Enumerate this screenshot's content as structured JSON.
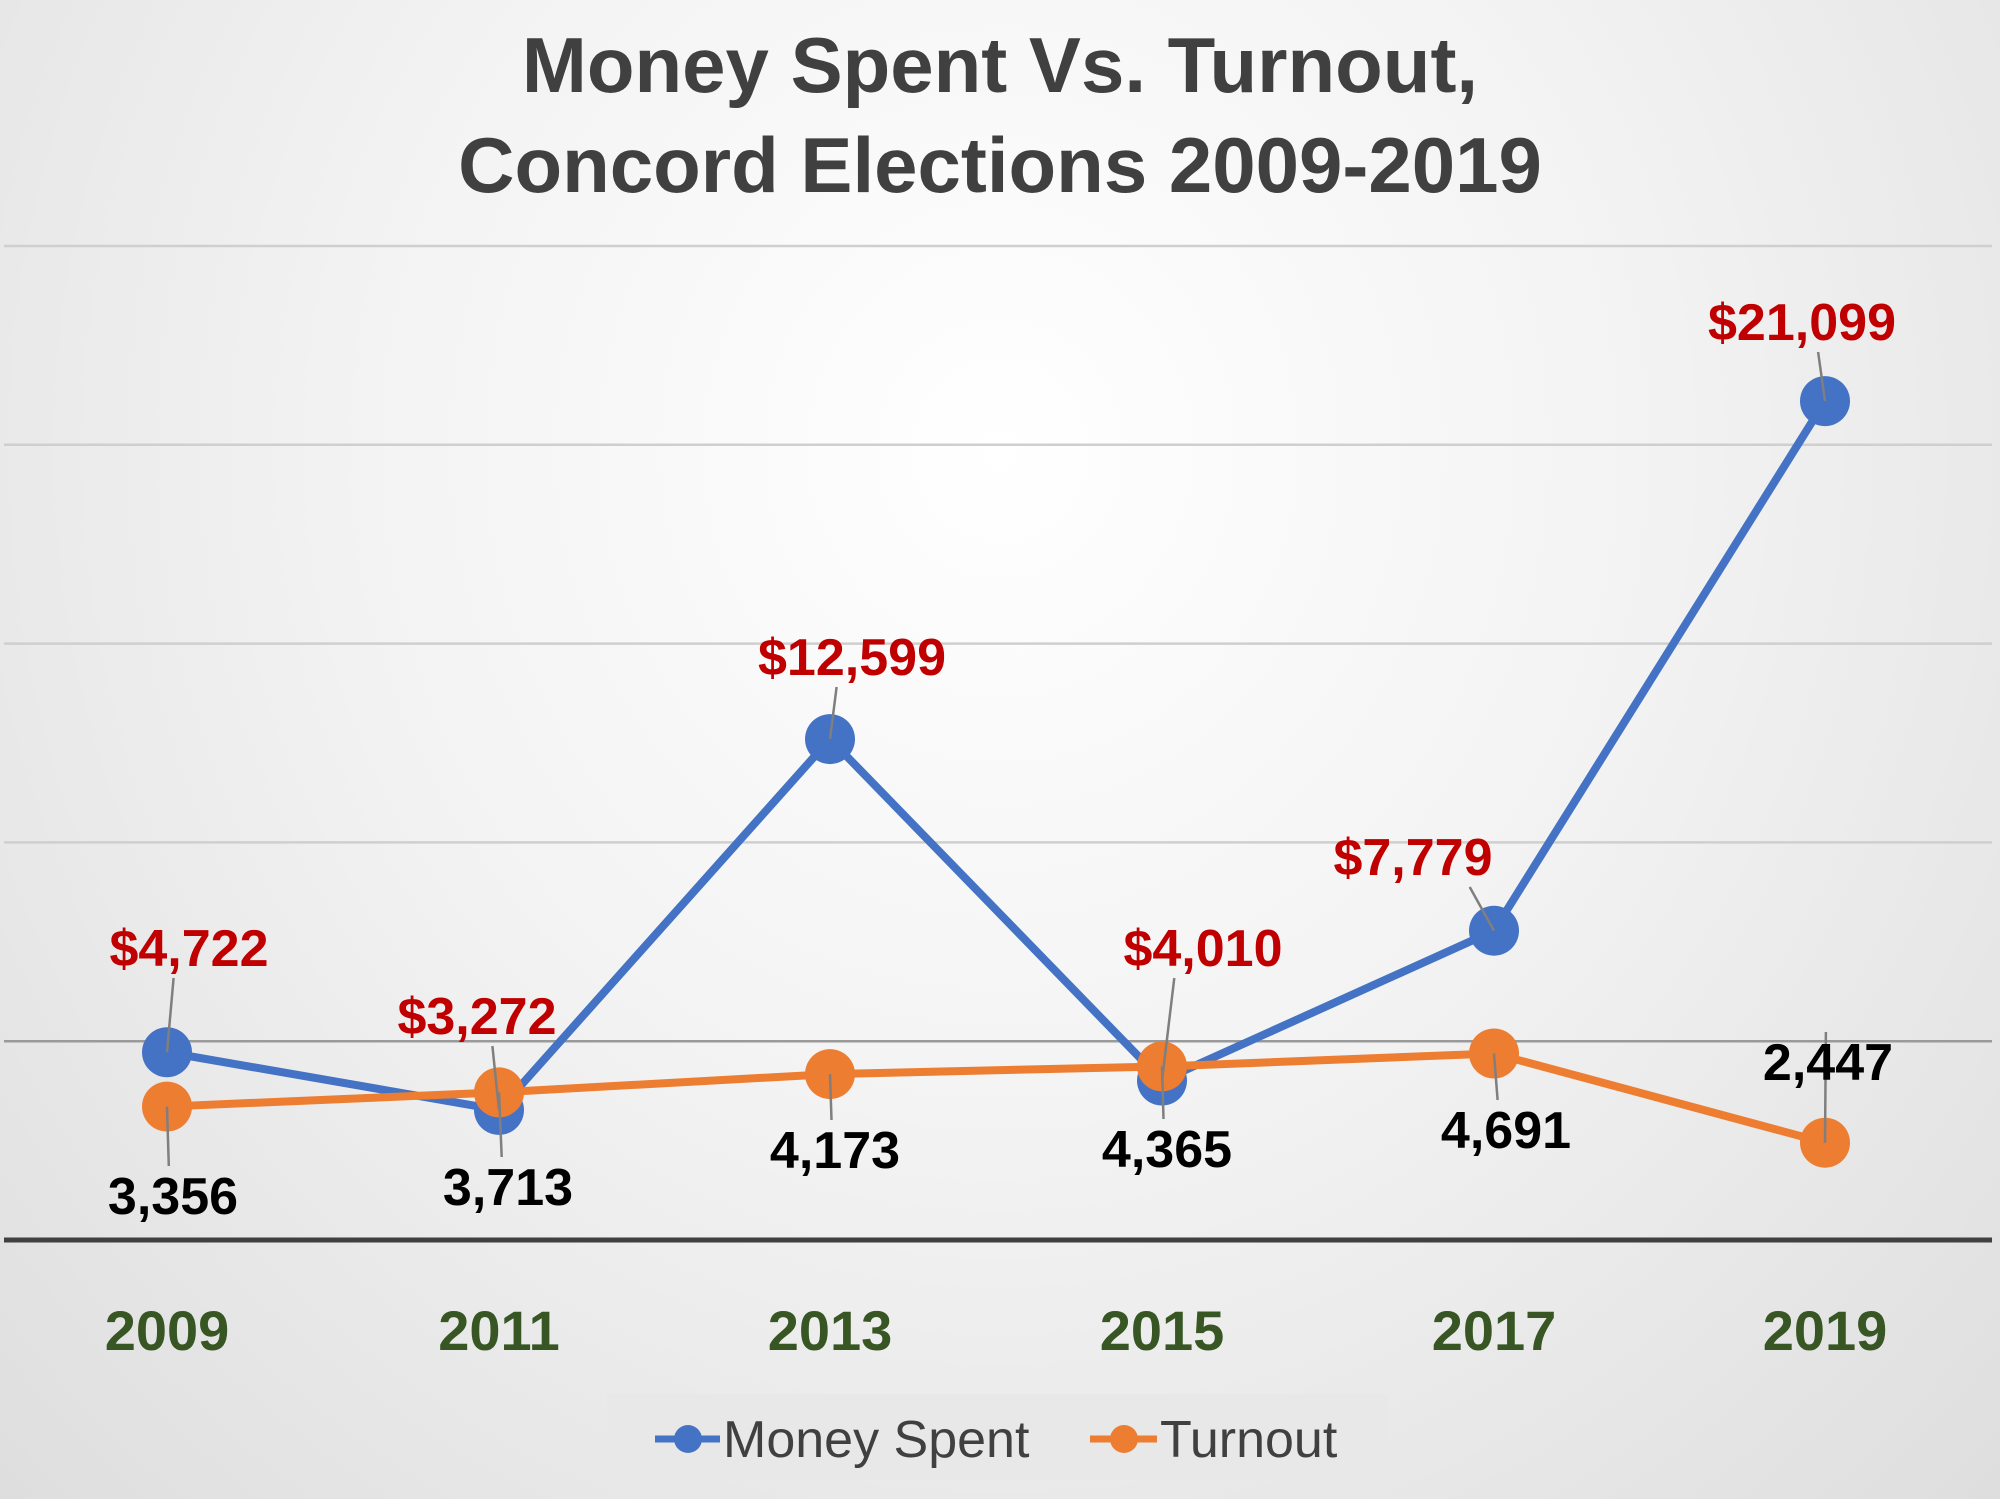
{
  "chart_data": {
    "type": "line",
    "title": "Money Spent Vs. Turnout,",
    "subtitle": "Concord Elections 2009-2019",
    "categories": [
      "2009",
      "2011",
      "2013",
      "2015",
      "2017",
      "2019"
    ],
    "series": [
      {
        "name": "Money Spent",
        "values": [
          4722,
          3272,
          12599,
          4010,
          7779,
          21099
        ],
        "labels": [
          "$4,722",
          "$3,272",
          "$12,599",
          "$4,010",
          "$7,779",
          "$21,099"
        ],
        "color": "#4472c4",
        "label_color": "#c00000"
      },
      {
        "name": "Turnout",
        "values": [
          3356,
          3713,
          4173,
          4365,
          4691,
          2447
        ],
        "labels": [
          "3,356",
          "3,713",
          "4,173",
          "4,365",
          "4,691",
          "2,447"
        ],
        "color": "#ed7d31",
        "label_color": "#000000"
      }
    ],
    "ylim": [
      0,
      25000
    ],
    "y_gridline_step": 5000,
    "y_tick_labels_shown": false,
    "grid": true,
    "legend": "bottom",
    "xtick_color": "#375623"
  }
}
